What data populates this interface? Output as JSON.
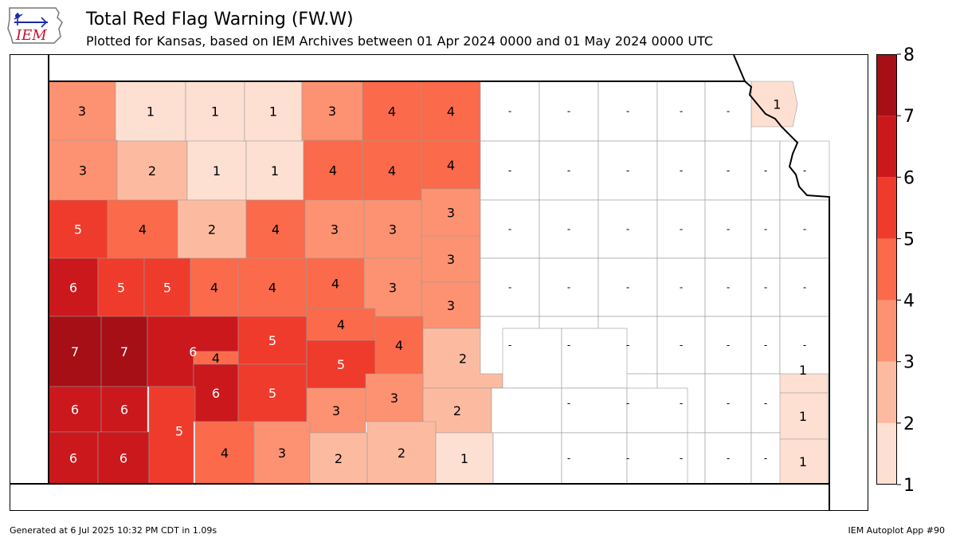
{
  "header": {
    "title": "Total Red Flag Warning (FW.W)",
    "subtitle": "Plotted for Kansas, based on IEM Archives  between 01 Apr 2024 0000 and 01 May 2024 0000 UTC",
    "logo_text": "IEM"
  },
  "footer": {
    "generated": "Generated at 6 Jul 2025 10:32 PM CDT in 1.09s",
    "app": "IEM Autoplot App #90"
  },
  "colorbar": {
    "tick_labels": [
      "1",
      "2",
      "3",
      "4",
      "5",
      "6",
      "7",
      "8"
    ],
    "colors": [
      "#fee0d2",
      "#fcbba1",
      "#fc9272",
      "#fb6a4a",
      "#ef3b2c",
      "#cb181d",
      "#a50f15"
    ]
  },
  "map": {
    "no_data_label": "-",
    "counties": [
      {
        "label": "3"
      },
      {
        "label": "1"
      },
      {
        "label": "1"
      },
      {
        "label": "1"
      },
      {
        "label": "3"
      },
      {
        "label": "4"
      },
      {
        "label": "4"
      },
      {
        "label": "3"
      },
      {
        "label": "2"
      },
      {
        "label": "1"
      },
      {
        "label": "1"
      },
      {
        "label": "4"
      },
      {
        "label": "4"
      },
      {
        "label": "4"
      },
      {
        "label": "5"
      },
      {
        "label": "4"
      },
      {
        "label": "2"
      },
      {
        "label": "4"
      },
      {
        "label": "3"
      },
      {
        "label": "3"
      },
      {
        "label": "3"
      },
      {
        "label": "3"
      },
      {
        "label": "6"
      },
      {
        "label": "5"
      },
      {
        "label": "5"
      },
      {
        "label": "4"
      },
      {
        "label": "4"
      },
      {
        "label": "4"
      },
      {
        "label": "3"
      },
      {
        "label": "3"
      },
      {
        "label": "7"
      },
      {
        "label": "7"
      },
      {
        "label": "6"
      },
      {
        "label": "5"
      },
      {
        "label": "4"
      },
      {
        "label": "4"
      },
      {
        "label": "2"
      },
      {
        "label": "6"
      },
      {
        "label": "4"
      },
      {
        "label": "6"
      },
      {
        "label": "6"
      },
      {
        "label": "5"
      },
      {
        "label": "5"
      },
      {
        "label": "3"
      },
      {
        "label": "3"
      },
      {
        "label": "2"
      },
      {
        "label": "6"
      },
      {
        "label": "6"
      },
      {
        "label": "5"
      },
      {
        "label": "4"
      },
      {
        "label": "3"
      },
      {
        "label": "2"
      },
      {
        "label": "2"
      },
      {
        "label": "1"
      },
      {
        "label": "1"
      },
      {
        "label": "1"
      },
      {
        "label": "1"
      },
      {
        "label": "1"
      }
    ]
  }
}
